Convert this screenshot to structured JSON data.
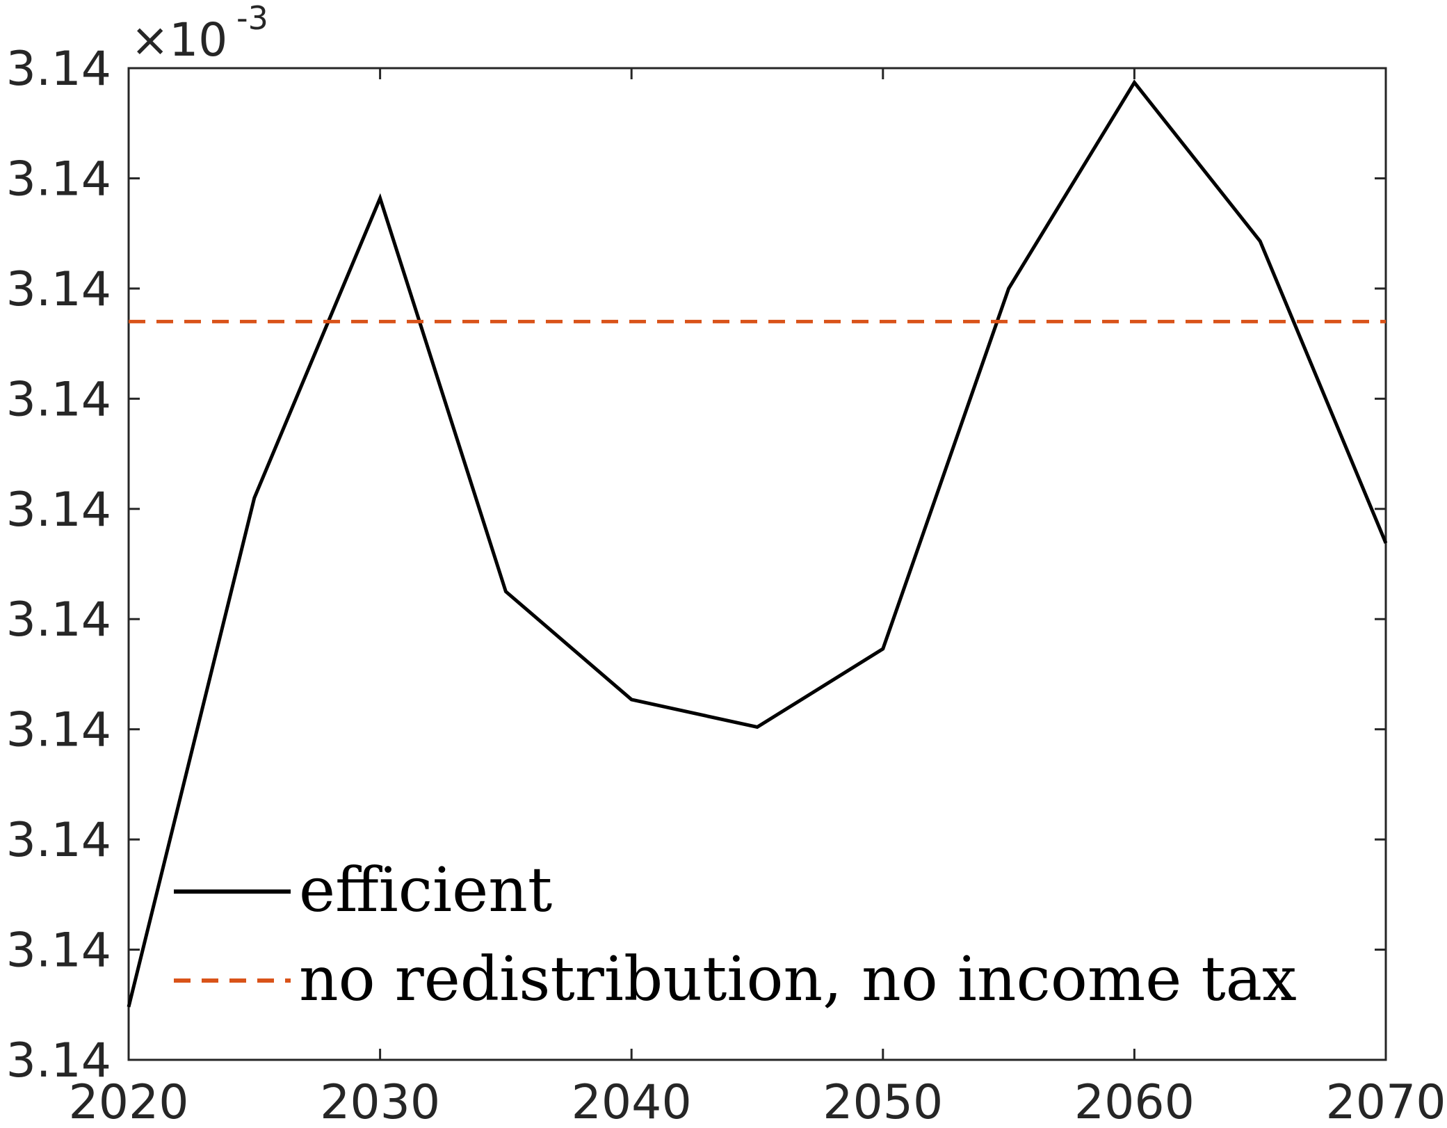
{
  "chart_data": {
    "type": "line",
    "title": "",
    "xlabel": "",
    "ylabel": "",
    "x": [
      2020,
      2025,
      2030,
      2035,
      2040,
      2045,
      2050,
      2055,
      2060,
      2065,
      2070
    ],
    "xlim": [
      2020,
      2070
    ],
    "x_ticks": [
      "2020",
      "2030",
      "2040",
      "2050",
      "2060",
      "2070"
    ],
    "y_tick_labels": [
      "3.14",
      "3.14",
      "3.14",
      "3.14",
      "3.14",
      "3.14",
      "3.14",
      "3.14",
      "3.14",
      "3.14"
    ],
    "y_exponent_label": {
      "base": "×10",
      "exponent": "-3"
    },
    "y_scale_note": "relative units, 0 = bottom of axis, 9 = top of axis (tick labels all read 3.14)",
    "ylim": [
      0,
      9
    ],
    "series": [
      {
        "name": "efficient",
        "style": "solid",
        "color": "#000000",
        "values": [
          0.48,
          5.1,
          7.82,
          4.25,
          3.27,
          3.02,
          3.73,
          7.0,
          8.87,
          7.43,
          4.69
        ]
      },
      {
        "name": "no redistribution, no income tax",
        "style": "dashed",
        "color": "#D95319",
        "values": [
          6.7,
          6.7,
          6.7,
          6.7,
          6.7,
          6.7,
          6.7,
          6.7,
          6.7,
          6.7,
          6.7
        ]
      }
    ],
    "legend_position": "bottom-left",
    "grid": false,
    "box": true
  }
}
